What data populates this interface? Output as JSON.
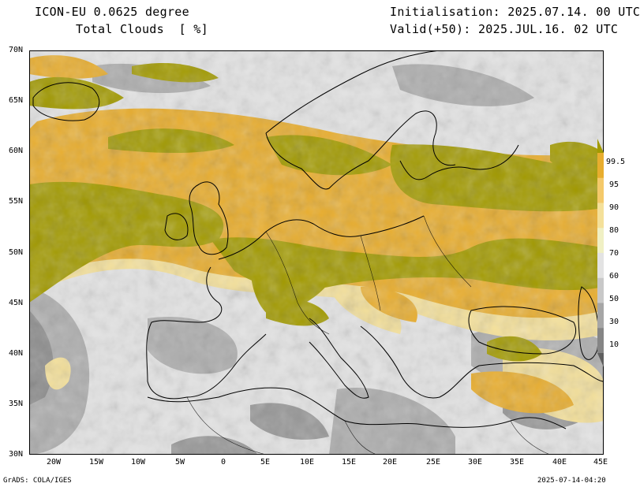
{
  "header": {
    "model": "ICON-EU 0.0625 degree",
    "variable": "Total Clouds  [ %]",
    "init": "Initialisation: 2025.07.14. 00 UTC",
    "valid": "Valid(+50): 2025.JUL.16. 02 UTC"
  },
  "axes": {
    "lat_labels": [
      "70N",
      "65N",
      "60N",
      "55N",
      "50N",
      "45N",
      "40N",
      "35N",
      "30N"
    ],
    "lon_labels": [
      "20W",
      "15W",
      "10W",
      "5W",
      "0",
      "5E",
      "10E",
      "15E",
      "20E",
      "25E",
      "30E",
      "35E",
      "40E",
      "45E"
    ]
  },
  "legend": {
    "labels": [
      "99.5",
      "95",
      "90",
      "80",
      "70",
      "60",
      "50",
      "30",
      "10"
    ],
    "colors": [
      "#a29a00",
      "#e8ad2e",
      "#f4c96a",
      "#f4e09a",
      "#f0f0c4",
      "#e3e3e3",
      "#c8c8c8",
      "#a6a6a6",
      "#858585",
      "#5f5f5f"
    ]
  },
  "colors": {
    "full_cloud": "#a29a00",
    "land_bg": "#e3e3e3"
  },
  "footer": {
    "left": "GrADS: COLA/IGES",
    "right": "2025-07-14-04:20"
  }
}
